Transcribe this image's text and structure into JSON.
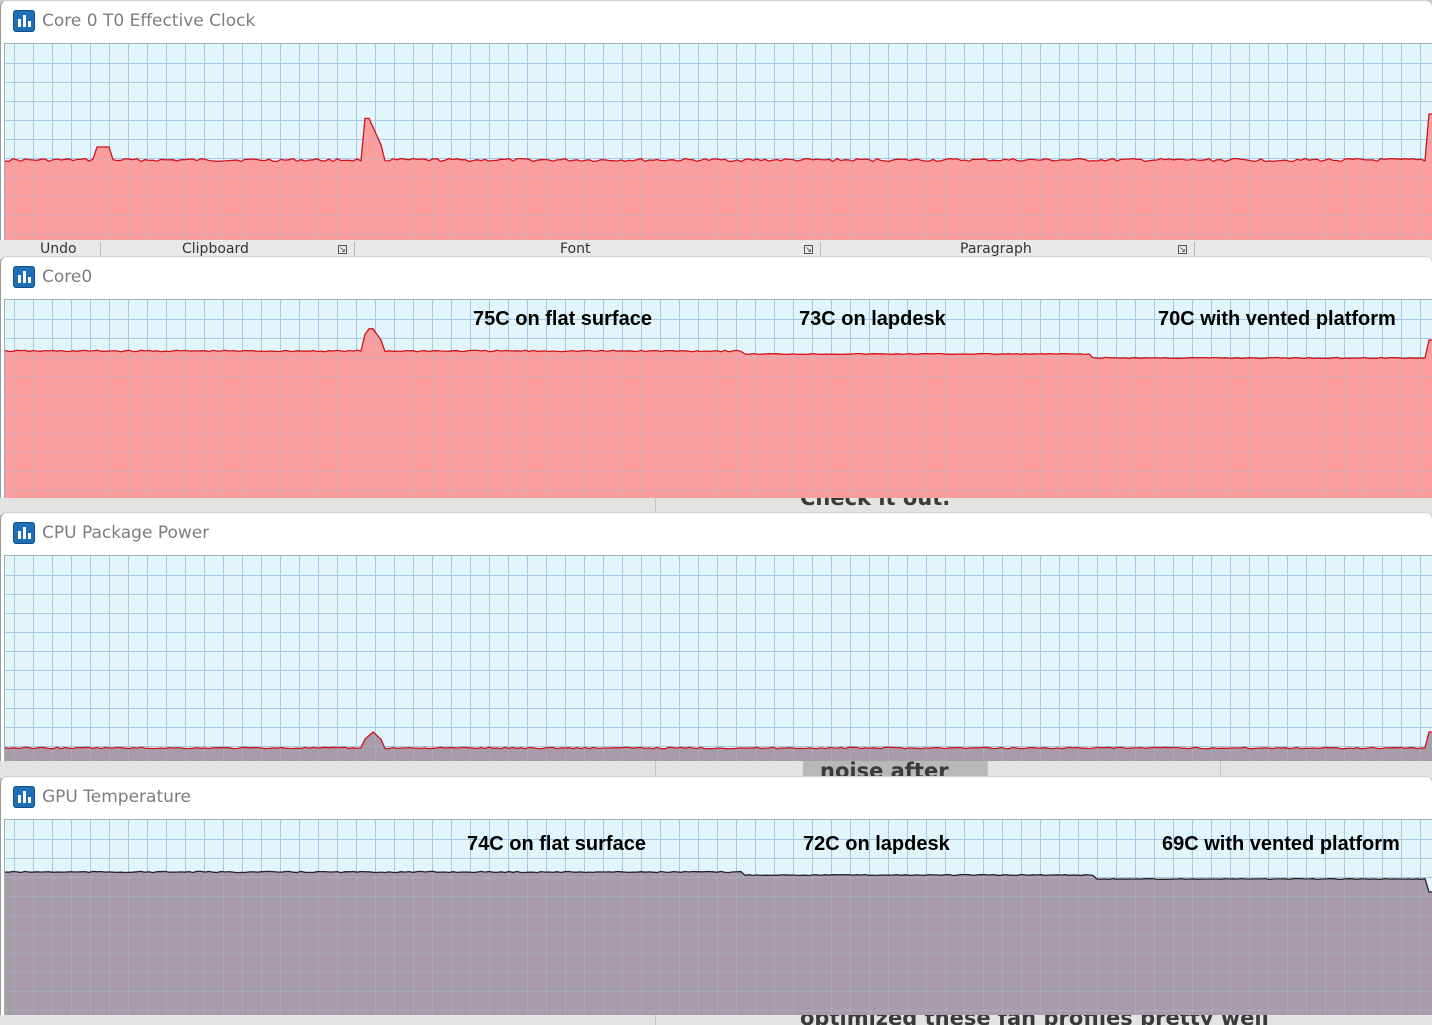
{
  "windows": [
    {
      "title": "Core 0 T0 Effective Clock",
      "series_color": "#ff9797",
      "line_color": "#d0121b",
      "annotations": []
    },
    {
      "title": "Core0",
      "series_color": "#ff9797",
      "line_color": "#d0121b",
      "annotations": [
        "75C on flat surface",
        "73C on lapdesk",
        "70C with vented platform"
      ]
    },
    {
      "title": "CPU Package Power",
      "series_color": "#a495a1",
      "line_color": "#d0121b",
      "annotations": []
    },
    {
      "title": "GPU Temperature",
      "series_color": "#a495a1",
      "line_color": "#2b1f28",
      "annotations": [
        "74C on flat surface",
        "72C on lapdesk",
        "69C with vented platform"
      ]
    }
  ],
  "background_document": {
    "ribbon_groups": [
      "Undo",
      "Clipboard",
      "Font",
      "Paragraph"
    ],
    "partial_texts": [
      "Check it out.",
      "noise after",
      "optimized these fan profiles pretty well"
    ]
  },
  "icons": [
    "hwinfo-graph-icon",
    "dialog-launcher-icon"
  ],
  "colors": {
    "grid_bg": "#e2f5fb",
    "grid_line": "#a7c8e6"
  }
}
